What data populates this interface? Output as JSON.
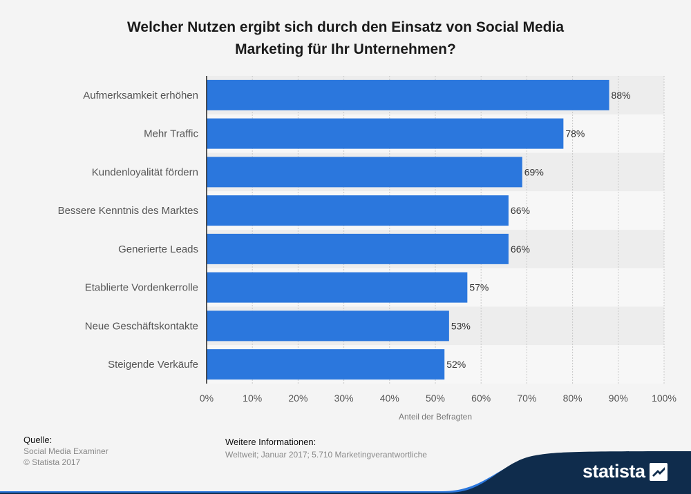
{
  "chart_data": {
    "type": "bar",
    "orientation": "horizontal",
    "title": [
      "Welcher Nutzen ergibt sich durch den Einsatz von Social Media",
      "Marketing für Ihr Unternehmen?"
    ],
    "categories": [
      "Aufmerksamkeit erhöhen",
      "Mehr Traffic",
      "Kundenloyalität fördern",
      "Bessere Kenntnis des Marktes",
      "Generierte Leads",
      "Etablierte Vordenkerrolle",
      "Neue Geschäftskontakte",
      "Steigende Verkäufe"
    ],
    "values": [
      88,
      78,
      69,
      66,
      66,
      57,
      53,
      52
    ],
    "value_labels": [
      "88%",
      "78%",
      "69%",
      "66%",
      "66%",
      "57%",
      "53%",
      "52%"
    ],
    "xlabel": "Anteil der Befragten",
    "xlim": [
      0,
      100
    ],
    "xticks": [
      "0%",
      "10%",
      "20%",
      "30%",
      "40%",
      "50%",
      "60%",
      "70%",
      "80%",
      "90%",
      "100%"
    ],
    "bar_color": "#2b77dd",
    "grid": true
  },
  "footer": {
    "source_label": "Quelle:",
    "source_lines": [
      "Social Media Examiner",
      "© Statista 2017"
    ],
    "info_label": "Weitere Informationen:",
    "info_text": "Weltweit; Januar 2017; 5.710 Marketingverantwortliche"
  },
  "brand": {
    "name": "statista",
    "swoosh_color": "#0f2c4c",
    "accent_color": "#2b77dd"
  }
}
